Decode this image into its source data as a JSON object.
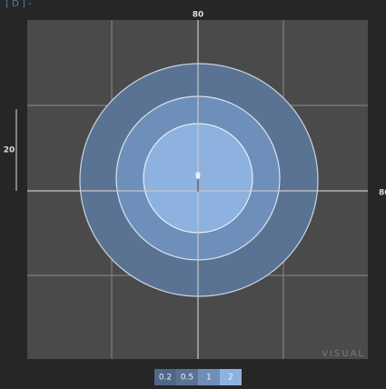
{
  "header": "[ D ] -",
  "axis_labels": {
    "top": "80",
    "left": "20",
    "right": "80"
  },
  "watermark": "VISUAL",
  "legend": [
    "0.2",
    "0.5",
    "1",
    "2"
  ]
}
